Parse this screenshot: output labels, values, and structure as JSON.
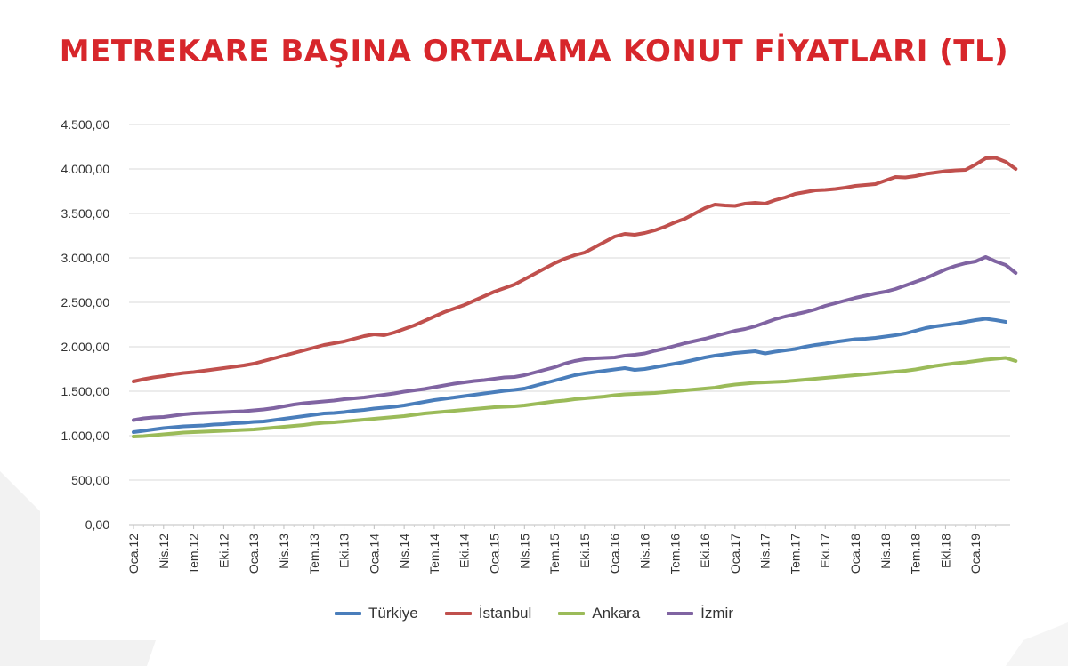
{
  "page": {
    "title": "METREKARE BAŞINA ORTALAMA KONUT FİYATLARI (TL)"
  },
  "chart_data": {
    "type": "line",
    "title": "METREKARE BAŞINA ORTALAMA KONUT FİYATLARI (TL)",
    "xlabel": "",
    "ylabel": "",
    "ylim": [
      0,
      4500
    ],
    "grid": true,
    "legend_position": "bottom",
    "y_ticks": [
      "0,00",
      "500,00",
      "1.000,00",
      "1.500,00",
      "2.000,00",
      "2.500,00",
      "3.000,00",
      "3.500,00",
      "4.000,00",
      "4.500,00"
    ],
    "x_tick_labels": [
      "Oca.12",
      "Nis.12",
      "Tem.12",
      "Eki.12",
      "Oca.13",
      "Nis.13",
      "Tem.13",
      "Eki.13",
      "Oca.14",
      "Nis.14",
      "Tem.14",
      "Eki.14",
      "Oca.15",
      "Nis.15",
      "Tem.15",
      "Eki.15",
      "Oca.16",
      "Nis.16",
      "Tem.16",
      "Eki.16",
      "Oca.17",
      "Nis.17",
      "Tem.17",
      "Eki.17",
      "Oca.18",
      "Nis.18",
      "Tem.18",
      "Eki.18",
      "Oca.19"
    ],
    "series": [
      {
        "name": "Türkiye",
        "color": "#4a7ebb",
        "values": [
          1040,
          1055,
          1070,
          1085,
          1095,
          1105,
          1110,
          1115,
          1125,
          1130,
          1140,
          1145,
          1155,
          1160,
          1175,
          1190,
          1205,
          1220,
          1235,
          1250,
          1255,
          1265,
          1280,
          1290,
          1305,
          1315,
          1325,
          1340,
          1360,
          1380,
          1400,
          1415,
          1430,
          1445,
          1460,
          1475,
          1490,
          1505,
          1515,
          1530,
          1560,
          1590,
          1620,
          1650,
          1680,
          1700,
          1715,
          1730,
          1745,
          1760,
          1740,
          1750,
          1770,
          1790,
          1810,
          1830,
          1855,
          1880,
          1900,
          1915,
          1930,
          1940,
          1950,
          1925,
          1945,
          1960,
          1975,
          2000,
          2020,
          2035,
          2055,
          2070,
          2085,
          2090,
          2100,
          2115,
          2130,
          2150,
          2180,
          2210,
          2230,
          2245,
          2260,
          2280,
          2300,
          2315,
          2300,
          2280
        ]
      },
      {
        "name": "İstanbul",
        "color": "#c0504d",
        "values": [
          1610,
          1635,
          1655,
          1670,
          1690,
          1705,
          1715,
          1730,
          1745,
          1760,
          1775,
          1790,
          1810,
          1840,
          1870,
          1900,
          1930,
          1960,
          1990,
          2020,
          2040,
          2060,
          2090,
          2120,
          2140,
          2130,
          2160,
          2200,
          2240,
          2290,
          2340,
          2390,
          2430,
          2470,
          2520,
          2570,
          2620,
          2660,
          2700,
          2760,
          2820,
          2880,
          2940,
          2990,
          3030,
          3060,
          3120,
          3180,
          3240,
          3270,
          3260,
          3280,
          3310,
          3350,
          3400,
          3440,
          3500,
          3560,
          3600,
          3590,
          3585,
          3610,
          3620,
          3610,
          3650,
          3680,
          3720,
          3740,
          3760,
          3765,
          3775,
          3790,
          3810,
          3820,
          3830,
          3870,
          3910,
          3905,
          3920,
          3945,
          3960,
          3975,
          3985,
          3990,
          4050,
          4120,
          4125,
          4080,
          4000
        ]
      },
      {
        "name": "Ankara",
        "color": "#9bbb59",
        "values": [
          990,
          995,
          1005,
          1015,
          1025,
          1035,
          1040,
          1045,
          1050,
          1055,
          1060,
          1065,
          1070,
          1080,
          1090,
          1100,
          1110,
          1120,
          1135,
          1145,
          1150,
          1160,
          1170,
          1180,
          1190,
          1200,
          1210,
          1220,
          1235,
          1250,
          1260,
          1270,
          1280,
          1290,
          1300,
          1310,
          1320,
          1325,
          1330,
          1340,
          1355,
          1370,
          1385,
          1395,
          1410,
          1420,
          1430,
          1440,
          1455,
          1465,
          1470,
          1475,
          1480,
          1490,
          1500,
          1510,
          1520,
          1530,
          1540,
          1560,
          1575,
          1585,
          1595,
          1600,
          1605,
          1610,
          1620,
          1630,
          1640,
          1650,
          1660,
          1670,
          1680,
          1690,
          1700,
          1710,
          1720,
          1730,
          1745,
          1765,
          1785,
          1800,
          1815,
          1825,
          1840,
          1855,
          1865,
          1875,
          1840
        ]
      },
      {
        "name": "İzmir",
        "color": "#8064a2",
        "values": [
          1175,
          1195,
          1205,
          1210,
          1225,
          1240,
          1250,
          1255,
          1260,
          1265,
          1270,
          1275,
          1285,
          1295,
          1310,
          1330,
          1350,
          1365,
          1375,
          1385,
          1395,
          1410,
          1420,
          1430,
          1445,
          1460,
          1475,
          1495,
          1510,
          1525,
          1545,
          1565,
          1585,
          1600,
          1615,
          1625,
          1640,
          1655,
          1660,
          1680,
          1710,
          1740,
          1770,
          1810,
          1840,
          1860,
          1870,
          1875,
          1880,
          1900,
          1910,
          1925,
          1955,
          1980,
          2010,
          2040,
          2065,
          2090,
          2120,
          2150,
          2180,
          2200,
          2230,
          2270,
          2310,
          2340,
          2365,
          2390,
          2420,
          2460,
          2490,
          2520,
          2550,
          2575,
          2600,
          2620,
          2650,
          2690,
          2730,
          2770,
          2820,
          2870,
          2910,
          2940,
          2960,
          3010,
          2960,
          2920,
          2830
        ]
      }
    ]
  }
}
